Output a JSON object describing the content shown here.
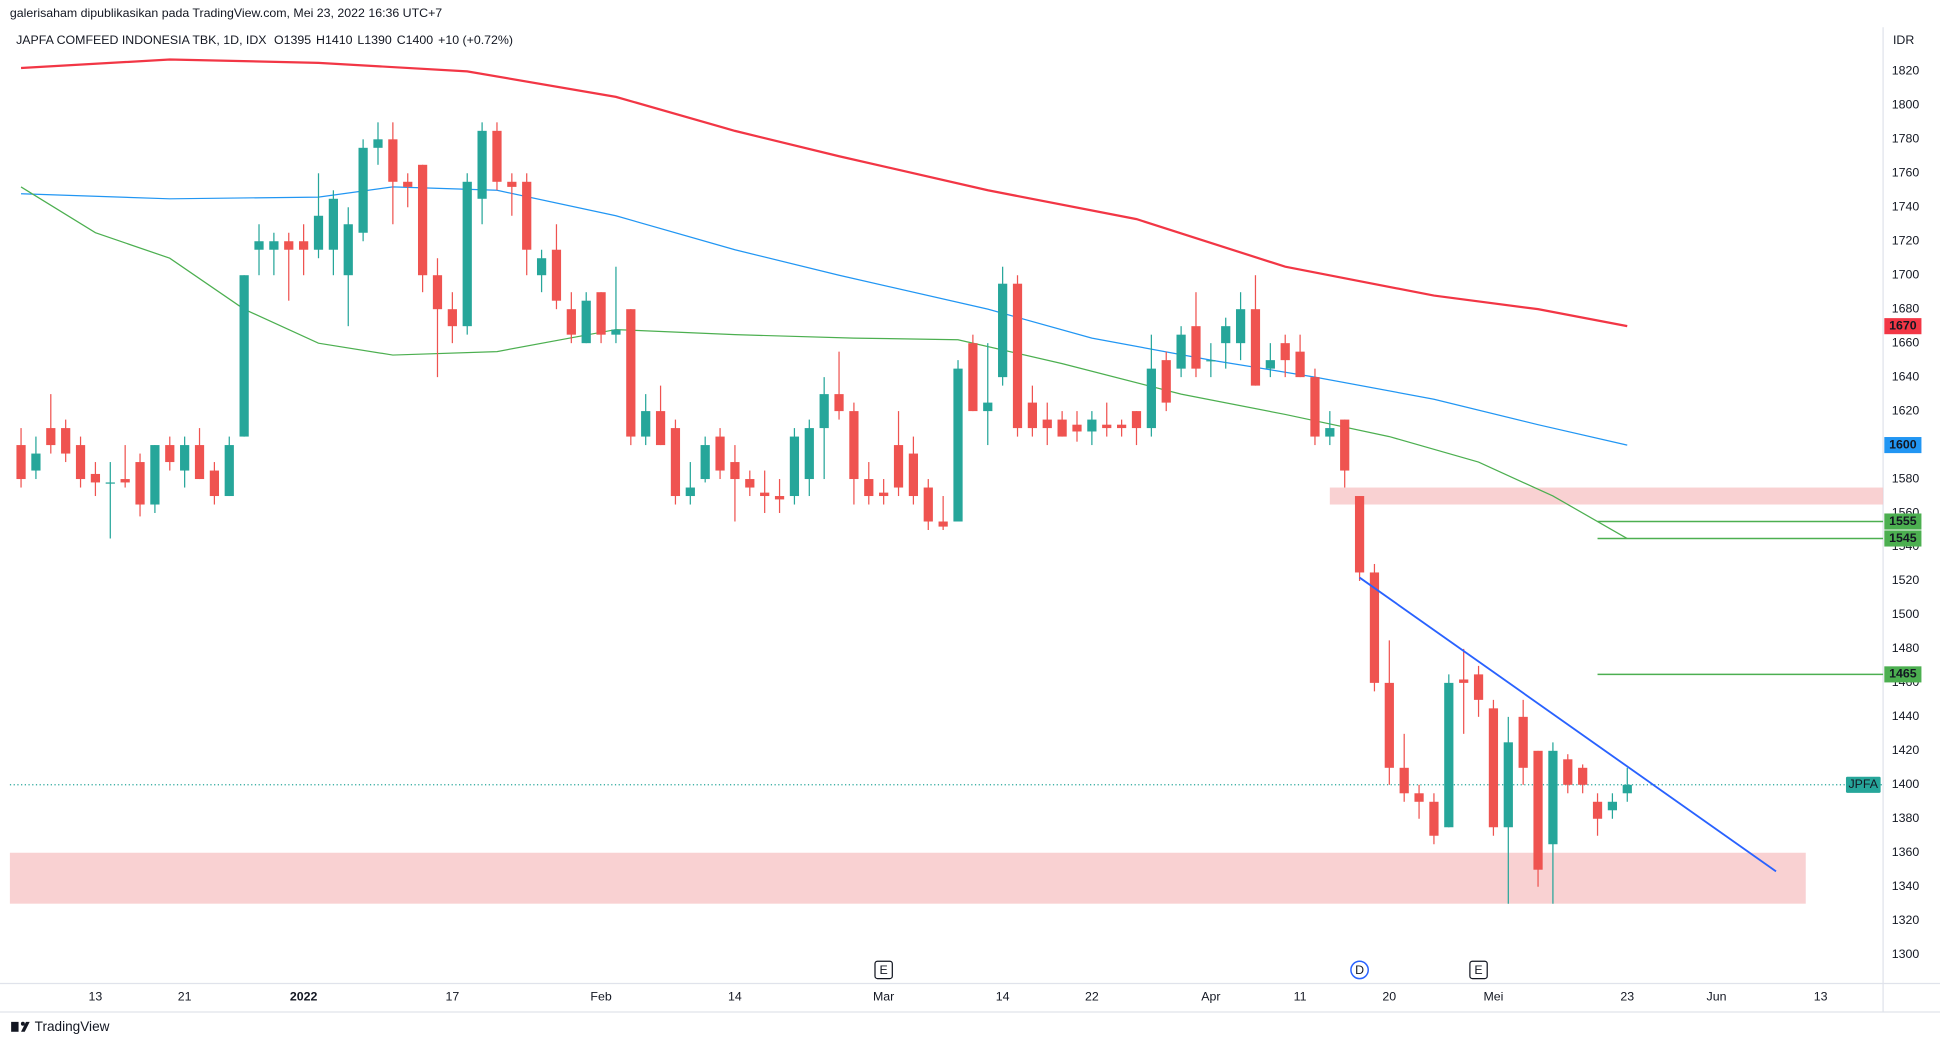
{
  "chart_data": {
    "type": "candlestick",
    "header": "galerisaham dipublikasikan pada TradingView.com, Mei 23, 2022 16:36 UTC+7",
    "title": "JAPFA COMFEED INDONESIA TBK, 1D, IDX",
    "ohlc_labels": [
      "O1395",
      "H1410",
      "L1390",
      "C1400",
      "+10 (+0.72%)"
    ],
    "currency": "IDR",
    "symbol": "JPFA",
    "brand": "TradingView",
    "up_color": "#26a69a",
    "down_color": "#ef5350",
    "grid": false,
    "xlim": [
      -0.75,
      125.2
    ],
    "ylim": [
      1283,
      1846
    ],
    "yticks": [
      1300,
      1320,
      1340,
      1360,
      1380,
      1400,
      1420,
      1440,
      1460,
      1480,
      1500,
      1520,
      1540,
      1560,
      1580,
      1600,
      1620,
      1640,
      1660,
      1680,
      1700,
      1720,
      1740,
      1760,
      1780,
      1800,
      1820
    ],
    "xticks": [
      {
        "value": 5,
        "label": "13"
      },
      {
        "value": 11,
        "label": "21"
      },
      {
        "value": 19,
        "label": "2022"
      },
      {
        "value": 29,
        "label": "17"
      },
      {
        "value": 39,
        "label": "Feb"
      },
      {
        "value": 48,
        "label": "14"
      },
      {
        "value": 58,
        "label": "Mar"
      },
      {
        "value": 66,
        "label": "14"
      },
      {
        "value": 72,
        "label": "22"
      },
      {
        "value": 80,
        "label": "Apr"
      },
      {
        "value": 86,
        "label": "11"
      },
      {
        "value": 92,
        "label": "20"
      },
      {
        "value": 99,
        "label": "Mei"
      },
      {
        "value": 108,
        "label": "23"
      },
      {
        "value": 114,
        "label": "Jun"
      },
      {
        "value": 121,
        "label": "13"
      }
    ],
    "values": [
      [
        1600,
        1610,
        1575,
        1580
      ],
      [
        1585,
        1605,
        1580,
        1595
      ],
      [
        1610,
        1630,
        1595,
        1600
      ],
      [
        1610,
        1615,
        1590,
        1595
      ],
      [
        1600,
        1605,
        1575,
        1580
      ],
      [
        1583,
        1590,
        1570,
        1578
      ],
      [
        1578,
        1590,
        1545,
        1578
      ],
      [
        1580,
        1600,
        1575,
        1578
      ],
      [
        1590,
        1595,
        1558,
        1565
      ],
      [
        1565,
        1600,
        1560,
        1600
      ],
      [
        1600,
        1605,
        1585,
        1590
      ],
      [
        1585,
        1605,
        1575,
        1600
      ],
      [
        1600,
        1610,
        1580,
        1580
      ],
      [
        1585,
        1590,
        1565,
        1570
      ],
      [
        1570,
        1605,
        1570,
        1600
      ],
      [
        1605,
        1700,
        1605,
        1700
      ],
      [
        1715,
        1730,
        1700,
        1720
      ],
      [
        1715,
        1725,
        1700,
        1720
      ],
      [
        1720,
        1725,
        1685,
        1715
      ],
      [
        1720,
        1730,
        1700,
        1715
      ],
      [
        1715,
        1760,
        1710,
        1735
      ],
      [
        1715,
        1750,
        1700,
        1745
      ],
      [
        1700,
        1740,
        1670,
        1730
      ],
      [
        1725,
        1780,
        1720,
        1775
      ],
      [
        1775,
        1790,
        1765,
        1780
      ],
      [
        1780,
        1790,
        1730,
        1755
      ],
      [
        1755,
        1760,
        1740,
        1752
      ],
      [
        1765,
        1765,
        1690,
        1700
      ],
      [
        1700,
        1710,
        1640,
        1680
      ],
      [
        1680,
        1690,
        1660,
        1670
      ],
      [
        1670,
        1760,
        1665,
        1755
      ],
      [
        1745,
        1790,
        1730,
        1785
      ],
      [
        1785,
        1790,
        1750,
        1755
      ],
      [
        1755,
        1760,
        1735,
        1752
      ],
      [
        1755,
        1760,
        1700,
        1715
      ],
      [
        1700,
        1715,
        1690,
        1710
      ],
      [
        1715,
        1730,
        1680,
        1685
      ],
      [
        1680,
        1690,
        1660,
        1665
      ],
      [
        1660,
        1690,
        1660,
        1685
      ],
      [
        1690,
        1690,
        1660,
        1665
      ],
      [
        1665,
        1705,
        1660,
        1668
      ],
      [
        1680,
        1680,
        1600,
        1605
      ],
      [
        1605,
        1630,
        1600,
        1620
      ],
      [
        1620,
        1635,
        1600,
        1600
      ],
      [
        1610,
        1615,
        1565,
        1570
      ],
      [
        1570,
        1590,
        1565,
        1575
      ],
      [
        1580,
        1605,
        1578,
        1600
      ],
      [
        1605,
        1610,
        1580,
        1585
      ],
      [
        1590,
        1600,
        1555,
        1580
      ],
      [
        1580,
        1585,
        1570,
        1575
      ],
      [
        1572,
        1585,
        1560,
        1570
      ],
      [
        1570,
        1580,
        1560,
        1568
      ],
      [
        1570,
        1610,
        1565,
        1605
      ],
      [
        1580,
        1615,
        1570,
        1610
      ],
      [
        1610,
        1640,
        1580,
        1630
      ],
      [
        1630,
        1655,
        1615,
        1620
      ],
      [
        1620,
        1625,
        1565,
        1580
      ],
      [
        1580,
        1590,
        1565,
        1570
      ],
      [
        1572,
        1580,
        1565,
        1570
      ],
      [
        1600,
        1620,
        1570,
        1575
      ],
      [
        1595,
        1605,
        1565,
        1570
      ],
      [
        1575,
        1580,
        1550,
        1555
      ],
      [
        1555,
        1570,
        1550,
        1552
      ],
      [
        1555,
        1650,
        1555,
        1645
      ],
      [
        1660,
        1665,
        1620,
        1620
      ],
      [
        1620,
        1660,
        1600,
        1625
      ],
      [
        1640,
        1705,
        1635,
        1695
      ],
      [
        1695,
        1700,
        1605,
        1610
      ],
      [
        1625,
        1635,
        1605,
        1610
      ],
      [
        1615,
        1625,
        1600,
        1610
      ],
      [
        1615,
        1620,
        1605,
        1605
      ],
      [
        1612,
        1620,
        1602,
        1608
      ],
      [
        1608,
        1620,
        1600,
        1615
      ],
      [
        1612,
        1625,
        1605,
        1610
      ],
      [
        1612,
        1615,
        1605,
        1610
      ],
      [
        1620,
        1620,
        1600,
        1610
      ],
      [
        1610,
        1665,
        1605,
        1645
      ],
      [
        1650,
        1655,
        1620,
        1625
      ],
      [
        1645,
        1670,
        1640,
        1665
      ],
      [
        1670,
        1690,
        1640,
        1645
      ],
      [
        1650,
        1660,
        1640,
        1650
      ],
      [
        1660,
        1675,
        1645,
        1670
      ],
      [
        1660,
        1690,
        1650,
        1680
      ],
      [
        1680,
        1700,
        1635,
        1635
      ],
      [
        1645,
        1660,
        1640,
        1650
      ],
      [
        1660,
        1665,
        1640,
        1650
      ],
      [
        1655,
        1665,
        1640,
        1640
      ],
      [
        1640,
        1645,
        1600,
        1605
      ],
      [
        1605,
        1620,
        1600,
        1610
      ],
      [
        1615,
        1615,
        1575,
        1585
      ],
      [
        1570,
        1570,
        1520,
        1525
      ],
      [
        1525,
        1530,
        1455,
        1460
      ],
      [
        1460,
        1485,
        1400,
        1410
      ],
      [
        1410,
        1430,
        1390,
        1395
      ],
      [
        1395,
        1400,
        1380,
        1390
      ],
      [
        1390,
        1395,
        1365,
        1370
      ],
      [
        1375,
        1465,
        1375,
        1460
      ],
      [
        1462,
        1480,
        1430,
        1460
      ],
      [
        1465,
        1470,
        1440,
        1450
      ],
      [
        1445,
        1450,
        1370,
        1375
      ],
      [
        1375,
        1440,
        1330,
        1425
      ],
      [
        1440,
        1450,
        1400,
        1410
      ],
      [
        1420,
        1420,
        1340,
        1350
      ],
      [
        1365,
        1425,
        1330,
        1420
      ],
      [
        1415,
        1418,
        1395,
        1400
      ],
      [
        1410,
        1412,
        1395,
        1400
      ],
      [
        1390,
        1395,
        1370,
        1380
      ],
      [
        1385,
        1395,
        1380,
        1390
      ],
      [
        1395,
        1410,
        1390,
        1400
      ]
    ],
    "series": [
      {
        "color": "#f23645",
        "x": [
          0,
          10,
          20,
          30,
          40,
          48,
          55,
          65,
          75,
          85,
          95,
          102,
          108
        ],
        "values": [
          1822,
          1827,
          1825,
          1820,
          1805,
          1785,
          1770,
          1750,
          1733,
          1705,
          1688,
          1680,
          1670
        ]
      },
      {
        "color": "#2196f3",
        "x": [
          0,
          10,
          20,
          25,
          32,
          40,
          48,
          55,
          65,
          72,
          80,
          87,
          95,
          102,
          108
        ],
        "values": [
          1748,
          1745,
          1746,
          1752,
          1750,
          1735,
          1715,
          1700,
          1680,
          1663,
          1650,
          1640,
          1627,
          1612,
          1600
        ]
      },
      {
        "color": "#4caf50",
        "x": [
          0,
          5,
          10,
          15,
          20,
          25,
          32,
          40,
          48,
          56,
          63,
          70,
          78,
          85,
          92,
          98,
          103,
          108
        ],
        "values": [
          1752,
          1725,
          1710,
          1680,
          1660,
          1653,
          1655,
          1668,
          1665,
          1663,
          1662,
          1648,
          1630,
          1618,
          1605,
          1590,
          1570,
          1545
        ]
      }
    ],
    "levels": [
      {
        "x": 106,
        "value": 1555,
        "color": "#4caf50"
      },
      {
        "x": 106,
        "value": 1545,
        "color": "#4caf50"
      },
      {
        "x": 106,
        "value": 1465,
        "color": "#4caf50"
      }
    ],
    "zones": [
      {
        "x": [
          88,
          125.2
        ],
        "values": [
          1565,
          1575
        ],
        "color": "#f7c6c7"
      },
      {
        "x": [
          -0.75,
          120
        ],
        "values": [
          1330,
          1360
        ],
        "color": "#f7c6c7"
      }
    ],
    "trend": {
      "color": "#2962ff",
      "x": [
        90,
        118
      ],
      "values": [
        1522,
        1349
      ]
    },
    "events": [
      {
        "x": 58,
        "label": "E"
      },
      {
        "x": 90,
        "label": "D"
      },
      {
        "x": 98,
        "label": "E"
      }
    ]
  }
}
